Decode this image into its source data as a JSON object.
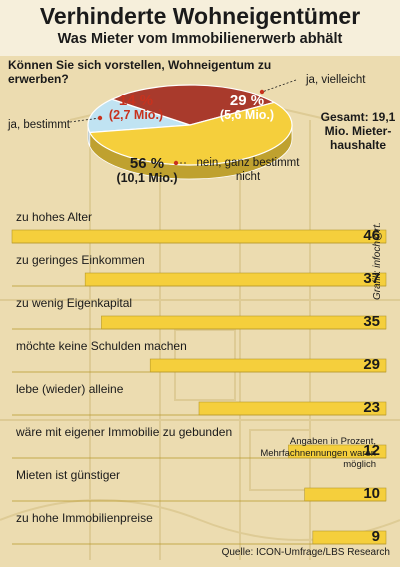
{
  "header": {
    "title": "Verhinderte Wohneigentümer",
    "subtitle": "Was Mieter vom Immobilienerwerb abhält"
  },
  "pie": {
    "question": "Können Sie sich vorstellen, Wohneigentum zu erwerben?",
    "slices": [
      {
        "label": "ja, bestimmt",
        "percent": "14 %",
        "count": "(2,7 Mio.)",
        "value": 14,
        "color": "#c0e3f2"
      },
      {
        "label": "ja, vielleicht",
        "percent": "29 %",
        "count": "(5,6 Mio.)",
        "value": 29,
        "color": "#a93a2c"
      },
      {
        "label": "nein, ganz bestimmt nicht",
        "percent": "56 %",
        "count": "(10,1 Mio.)",
        "value": 56,
        "color": "#f5cf3c"
      }
    ],
    "total_label": "Gesamt: 19,1 Mio. Mieter-haushalte"
  },
  "chart_data": {
    "type": "bar",
    "orientation": "horizontal",
    "categories": [
      "zu hohes Alter",
      "zu geringes Einkommen",
      "zu wenig Eigenkapital",
      "möchte keine Schulden machen",
      "lebe (wieder) alleine",
      "wäre mit eigener Immobilie zu gebunden",
      "Mieten ist günstiger",
      "zu hohe Immobilienpreise"
    ],
    "values": [
      46,
      37,
      35,
      29,
      23,
      12,
      10,
      9
    ],
    "xlim": [
      0,
      46
    ],
    "bar_color": "#f5cf3c",
    "note": "Angaben in Prozent, Mehrfachnennungen waren möglich",
    "source": "Quelle: ICON-Umfrage/LBS Research"
  },
  "credit": "Grafik: infoch@rt."
}
